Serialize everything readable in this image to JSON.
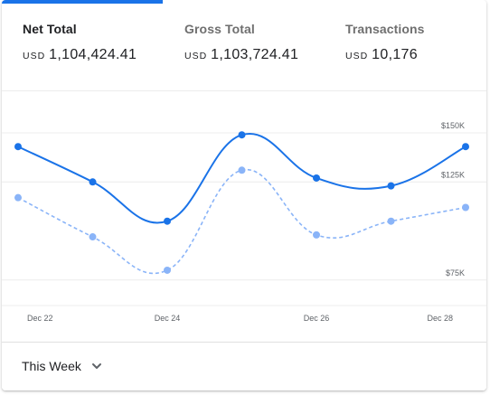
{
  "colors": {
    "accent": "#1a73e8",
    "secondary": "#8ab4f8",
    "tab_indicator": "#1a73e8",
    "grid": "#ececec",
    "axis_text": "#5f6368"
  },
  "metrics": [
    {
      "label": "Net Total",
      "currency": "USD",
      "value": "1,104,424.41",
      "active": true
    },
    {
      "label": "Gross Total",
      "currency": "USD",
      "value": "1,103,724.41",
      "active": false
    },
    {
      "label": "Transactions",
      "currency": "USD",
      "value": "10,176",
      "active": false
    }
  ],
  "chart_data": {
    "type": "line",
    "x": [
      "Dec 22",
      "Dec 23",
      "Dec 24",
      "Dec 25",
      "Dec 26",
      "Dec 27",
      "Dec 28"
    ],
    "x_tick_labels": [
      "Dec 22",
      "Dec 24",
      "Dec 26",
      "Dec 28"
    ],
    "y_tick_labels": [
      "$150K",
      "$125K",
      "$75K"
    ],
    "y_ticks": [
      150000,
      125000,
      75000
    ],
    "ylim": [
      62000,
      162000
    ],
    "grid": true,
    "series": [
      {
        "style": "solid",
        "color": "#1a73e8",
        "values": [
          143000,
          125000,
          105000,
          149000,
          127000,
          123000,
          143000
        ]
      },
      {
        "style": "dashed",
        "color": "#8ab4f8",
        "values": [
          117000,
          97000,
          80000,
          131000,
          98000,
          105000,
          112000
        ]
      }
    ]
  },
  "footer": {
    "range_label": "This Week",
    "chevron_icon": "chevron-down-icon"
  }
}
